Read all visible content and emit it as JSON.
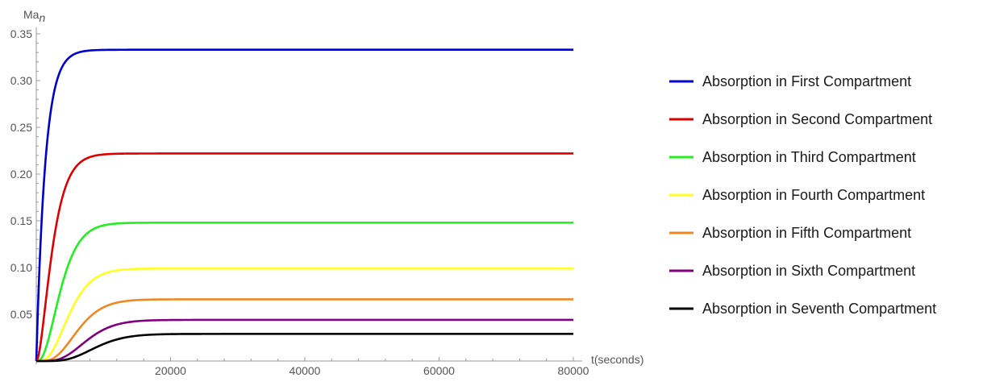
{
  "chart_data": {
    "type": "line",
    "xlabel": "t(seconds)",
    "ylabel": "Ma",
    "ylabel_sub": "n",
    "xlim": [
      0,
      80000
    ],
    "ylim": [
      0,
      0.35
    ],
    "x_ticks": [
      {
        "value": 20000,
        "label": "20000"
      },
      {
        "value": 40000,
        "label": "40000"
      },
      {
        "value": 60000,
        "label": "60000"
      },
      {
        "value": 80000,
        "label": "80000"
      }
    ],
    "y_ticks": [
      {
        "value": 0.05,
        "label": "0.05"
      },
      {
        "value": 0.1,
        "label": "0.10"
      },
      {
        "value": 0.15,
        "label": "0.15"
      },
      {
        "value": 0.2,
        "label": "0.20"
      },
      {
        "value": 0.25,
        "label": "0.25"
      },
      {
        "value": 0.3,
        "label": "0.30"
      },
      {
        "value": 0.35,
        "label": "0.35"
      }
    ],
    "grid": false,
    "legend_position": "right",
    "series": [
      {
        "name": "Absorption in First Compartment",
        "color": "#0000cc",
        "rise_order": 1,
        "x": [
          0,
          1000,
          2000,
          3000,
          4000,
          5000,
          6000,
          8000,
          10000,
          15000,
          20000,
          40000,
          60000,
          80000
        ],
        "y": [
          0,
          0.205,
          0.283,
          0.314,
          0.325,
          0.33,
          0.332,
          0.333,
          0.333,
          0.333,
          0.333,
          0.333,
          0.333,
          0.333
        ]
      },
      {
        "name": "Absorption in Second Compartment",
        "color": "#dd0000",
        "rise_order": 2,
        "x": [
          0,
          1000,
          2000,
          3000,
          4000,
          5000,
          6000,
          8000,
          10000,
          15000,
          20000,
          40000,
          60000,
          80000
        ],
        "y": [
          0,
          0.052,
          0.129,
          0.178,
          0.203,
          0.214,
          0.219,
          0.222,
          0.222,
          0.222,
          0.222,
          0.222,
          0.222,
          0.222
        ]
      },
      {
        "name": "Absorption in Third Compartment",
        "color": "#22ee22",
        "rise_order": 3,
        "x": [
          0,
          1000,
          2000,
          3000,
          4000,
          5000,
          6000,
          8000,
          10000,
          15000,
          20000,
          40000,
          60000,
          80000
        ],
        "y": [
          0,
          0.009,
          0.041,
          0.077,
          0.104,
          0.122,
          0.133,
          0.143,
          0.147,
          0.148,
          0.148,
          0.148,
          0.148,
          0.148
        ]
      },
      {
        "name": "Absorption in Fourth Compartment",
        "color": "#ffff22",
        "rise_order": 4,
        "x": [
          0,
          1000,
          2000,
          3000,
          4000,
          5000,
          6000,
          8000,
          10000,
          15000,
          20000,
          40000,
          60000,
          80000
        ],
        "y": [
          0,
          0.001,
          0.01,
          0.027,
          0.046,
          0.061,
          0.073,
          0.088,
          0.095,
          0.098,
          0.099,
          0.099,
          0.099,
          0.099
        ]
      },
      {
        "name": "Absorption in Fifth Compartment",
        "color": "#ee8822",
        "rise_order": 5,
        "x": [
          0,
          1000,
          2000,
          3000,
          4000,
          5000,
          6000,
          8000,
          10000,
          15000,
          20000,
          40000,
          60000,
          80000
        ],
        "y": [
          0,
          0.0,
          0.002,
          0.008,
          0.017,
          0.027,
          0.036,
          0.051,
          0.059,
          0.065,
          0.066,
          0.066,
          0.066,
          0.066
        ]
      },
      {
        "name": "Absorption in Sixth Compartment",
        "color": "#800080",
        "rise_order": 6,
        "x": [
          0,
          1000,
          2000,
          3000,
          4000,
          5000,
          6000,
          8000,
          10000,
          15000,
          20000,
          40000,
          60000,
          80000
        ],
        "y": [
          0,
          0.0,
          0.0,
          0.002,
          0.005,
          0.01,
          0.015,
          0.026,
          0.034,
          0.042,
          0.044,
          0.044,
          0.044,
          0.044
        ]
      },
      {
        "name": "Absorption in Seventh Compartment",
        "color": "#000000",
        "rise_order": 7,
        "x": [
          0,
          1000,
          2000,
          3000,
          4000,
          5000,
          6000,
          8000,
          10000,
          15000,
          20000,
          40000,
          60000,
          80000
        ],
        "y": [
          0,
          0.0,
          0.0,
          0.0,
          0.001,
          0.003,
          0.006,
          0.014,
          0.02,
          0.027,
          0.029,
          0.029,
          0.029,
          0.029
        ]
      }
    ]
  }
}
